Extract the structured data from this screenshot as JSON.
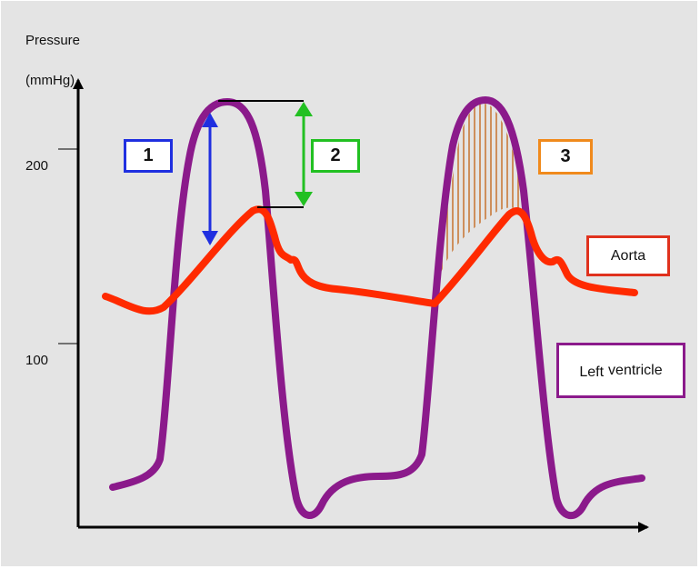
{
  "axis": {
    "y_title_line1": "Pressure",
    "y_title_line2": "(mmHg)",
    "ticks": [
      "200",
      "100"
    ]
  },
  "callouts": {
    "one": "1",
    "two": "2",
    "three": "3"
  },
  "legend": {
    "aorta": "Aorta",
    "left_ventricle_word1": "Left",
    "left_ventricle_word2": "ventricle"
  },
  "colors": {
    "background": "#e4e4e4",
    "ventricle": "#8b1a8b",
    "aorta": "#ff2a00",
    "callout1": "#1f2fe0",
    "callout2": "#22c022",
    "callout3": "#f08a1c",
    "hatch": "#c87a3a",
    "aorta_box": "#e0321e",
    "ventricle_box": "#8b1a8b"
  }
}
